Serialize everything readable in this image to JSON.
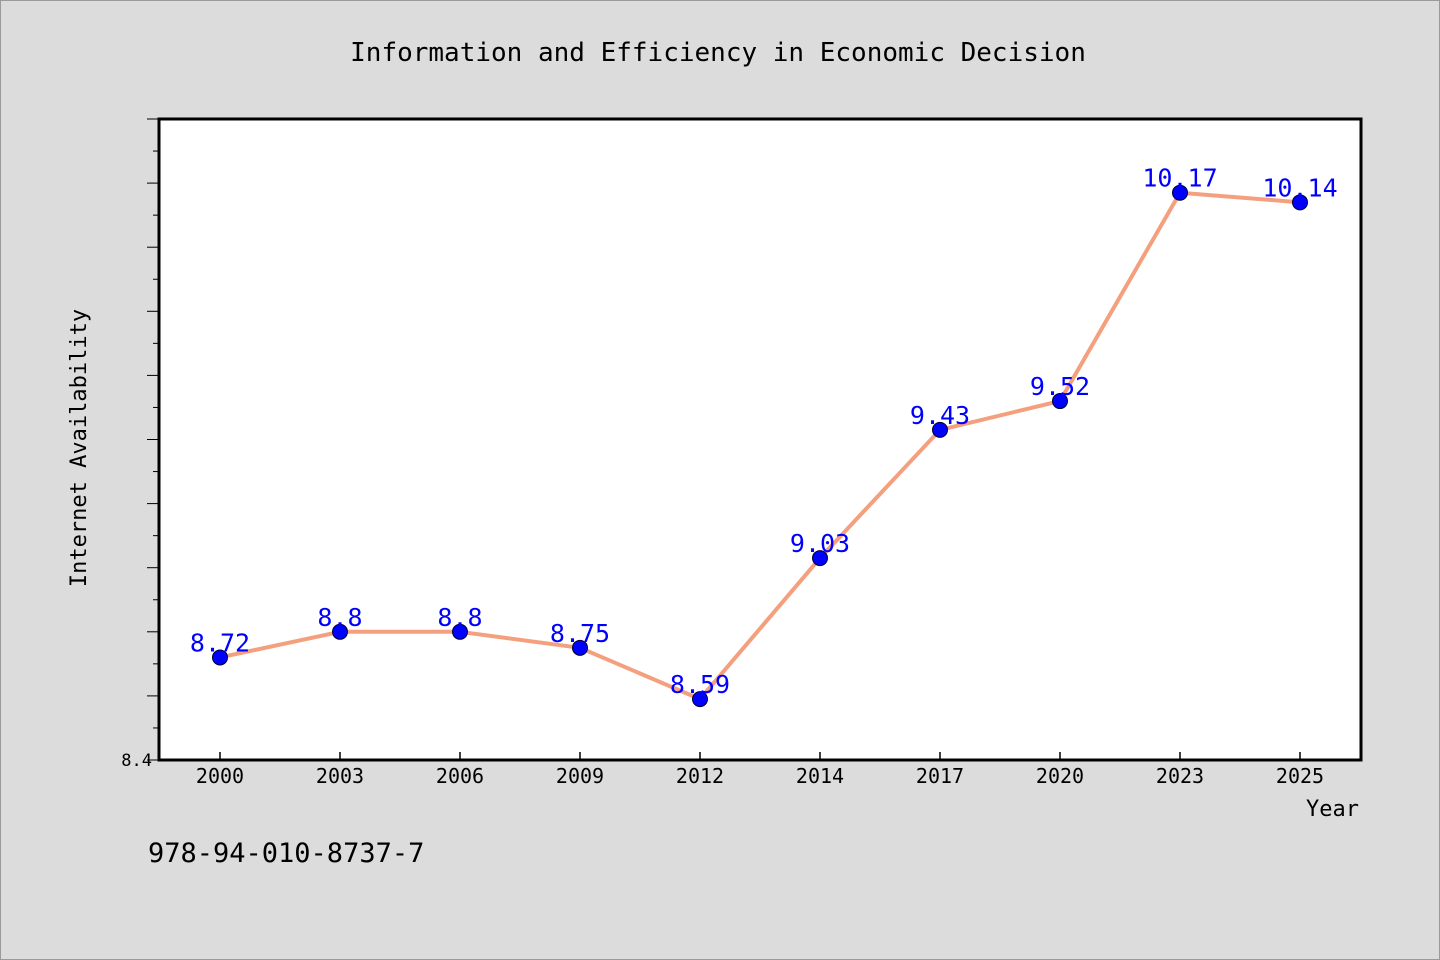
{
  "chart_data": {
    "type": "line",
    "title": "Information and Efficiency in Economic Decision",
    "xlabel": "Year",
    "ylabel": "Internet Availability",
    "categories": [
      "2000",
      "2003",
      "2006",
      "2009",
      "2012",
      "2014",
      "2017",
      "2020",
      "2023",
      "2025"
    ],
    "series": [
      {
        "values": [
          8.72,
          8.8,
          8.8,
          8.75,
          8.59,
          9.03,
          9.43,
          9.52,
          10.17,
          10.14
        ],
        "data_labels": [
          "8.72",
          "8.8",
          "8.8",
          "8.75",
          "8.59",
          "9.03",
          "9.43",
          "9.52",
          "10.17",
          "10.14"
        ],
        "line_color": "#f4a07e",
        "marker_color": "#0000ff"
      }
    ],
    "ylim": [
      8.4,
      10.4
    ],
    "y_tick_labels": [
      "8.4"
    ],
    "grid": false,
    "legend": "none"
  },
  "footer": {
    "isbn": "978-94-010-8737-7"
  },
  "colors": {
    "background": "#dcdcdc",
    "plot_background": "#ffffff",
    "data_label": "#0000ff"
  }
}
